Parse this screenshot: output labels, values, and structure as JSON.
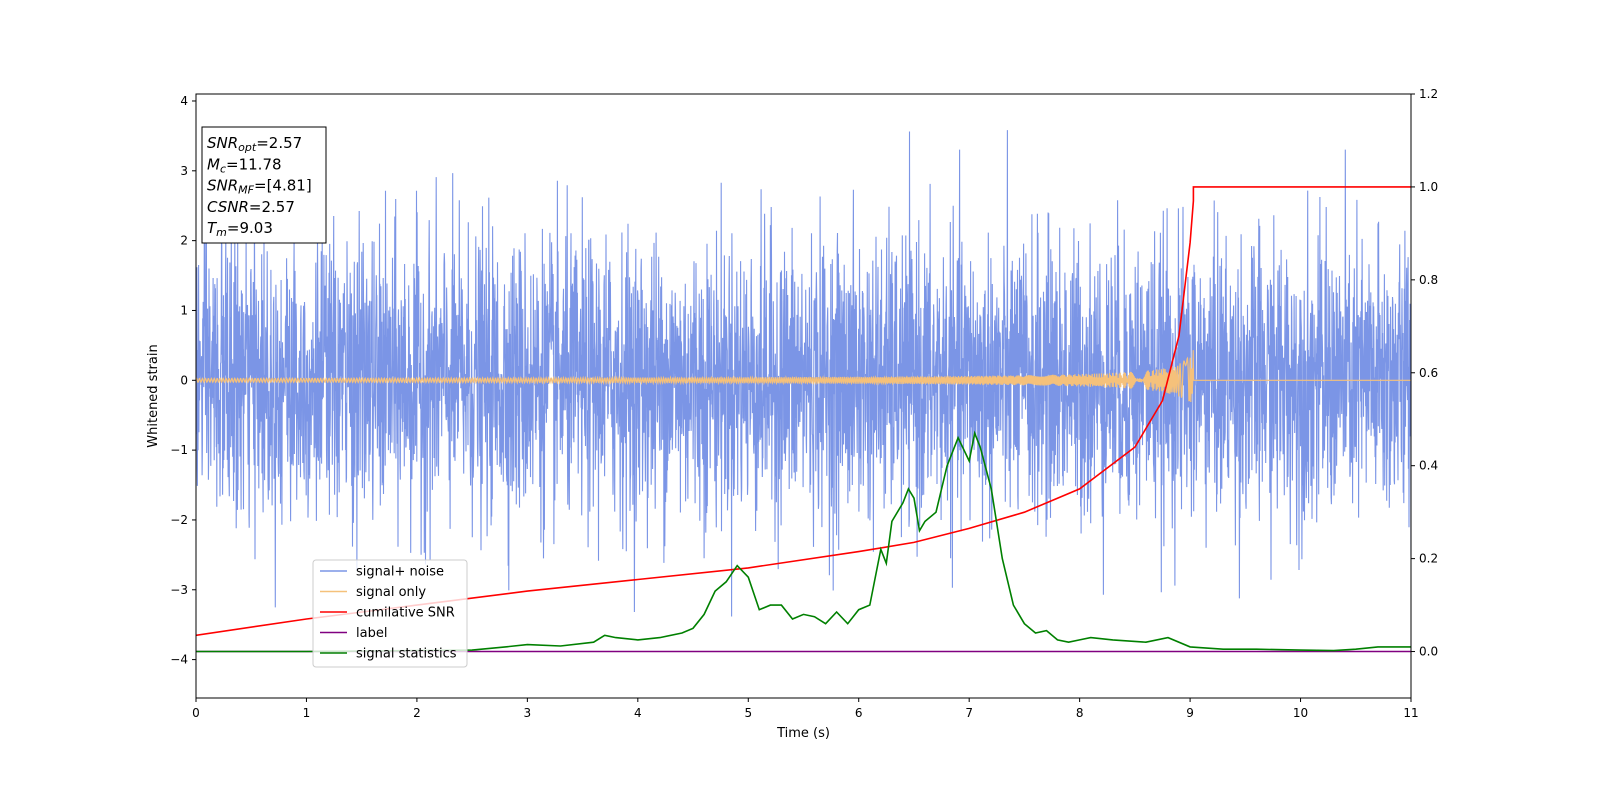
{
  "chart_data": {
    "type": "line",
    "xlabel": "Time (s)",
    "ylabel": "Whitened strain",
    "xlim": [
      0,
      11
    ],
    "ylim": [
      -4.55,
      4.1
    ],
    "y2lim": [
      -0.1,
      1.2
    ],
    "x_ticks": [
      "0",
      "1",
      "2",
      "3",
      "4",
      "5",
      "6",
      "7",
      "8",
      "9",
      "10",
      "11"
    ],
    "y_ticks": [
      "−4",
      "−3",
      "−2",
      "−1",
      "0",
      "1",
      "2",
      "3",
      "4"
    ],
    "y2_ticks": [
      "0.0",
      "0.2",
      "0.4",
      "0.6",
      "0.8",
      "1.0",
      "1.2"
    ],
    "grid": false,
    "legend_position": "lower-left",
    "annotation": {
      "lines": [
        {
          "name": "SNR",
          "sub": "opt",
          "value": "=2.57"
        },
        {
          "name": "M",
          "sub": "c",
          "value": "=11.78"
        },
        {
          "name": "SNR",
          "sub": "MF",
          "value": "=[4.81]"
        },
        {
          "name": "CSNR",
          "sub": "",
          "value": "=2.57"
        },
        {
          "name": "T",
          "sub": "m",
          "value": "=9.03"
        }
      ]
    },
    "series": [
      {
        "name": "signal+ noise",
        "color": "#7b95e6",
        "axis": "left",
        "note": "Gaussian noise with peaks up to about +3.7 / -3.5"
      },
      {
        "name": "signal only",
        "color": "#f5c17b",
        "axis": "left",
        "note": "chirp, amplitude grows to about 0.48 at t=9.03 then zero"
      },
      {
        "name": "cumilative SNR",
        "color": "#ff0000",
        "axis": "right",
        "x": [
          0,
          1,
          2,
          3,
          4,
          5,
          6,
          6.5,
          7,
          7.5,
          8,
          8.5,
          8.75,
          8.9,
          9.0,
          9.03,
          9.03,
          11
        ],
        "y": [
          0.035,
          0.07,
          0.1,
          0.13,
          0.155,
          0.18,
          0.215,
          0.235,
          0.265,
          0.3,
          0.35,
          0.44,
          0.54,
          0.68,
          0.88,
          0.97,
          1.0,
          1.0
        ]
      },
      {
        "name": "label",
        "color": "#800080",
        "axis": "right",
        "x": [
          0,
          11
        ],
        "y": [
          0.0,
          0.0
        ]
      },
      {
        "name": "signal statistics",
        "color": "#008000",
        "axis": "right",
        "x": [
          0,
          1,
          2,
          2.5,
          2.8,
          3,
          3.3,
          3.6,
          3.7,
          3.8,
          4,
          4.2,
          4.4,
          4.5,
          4.6,
          4.7,
          4.8,
          4.9,
          5.0,
          5.1,
          5.2,
          5.3,
          5.4,
          5.5,
          5.6,
          5.7,
          5.8,
          5.9,
          6.0,
          6.1,
          6.2,
          6.25,
          6.3,
          6.4,
          6.45,
          6.5,
          6.55,
          6.6,
          6.7,
          6.8,
          6.9,
          7.0,
          7.05,
          7.1,
          7.2,
          7.3,
          7.4,
          7.5,
          7.6,
          7.7,
          7.8,
          7.9,
          8.0,
          8.1,
          8.3,
          8.6,
          8.8,
          9.0,
          9.3,
          9.6,
          10.0,
          10.3,
          10.5,
          10.7,
          11
        ],
        "y": [
          0.0,
          0.0,
          0.002,
          0.003,
          0.01,
          0.015,
          0.012,
          0.02,
          0.035,
          0.03,
          0.025,
          0.03,
          0.04,
          0.05,
          0.08,
          0.13,
          0.15,
          0.185,
          0.16,
          0.09,
          0.1,
          0.1,
          0.07,
          0.08,
          0.075,
          0.06,
          0.085,
          0.06,
          0.09,
          0.1,
          0.22,
          0.19,
          0.28,
          0.32,
          0.35,
          0.33,
          0.26,
          0.28,
          0.3,
          0.4,
          0.46,
          0.41,
          0.47,
          0.44,
          0.35,
          0.2,
          0.1,
          0.06,
          0.04,
          0.045,
          0.025,
          0.02,
          0.025,
          0.03,
          0.025,
          0.02,
          0.03,
          0.01,
          0.005,
          0.005,
          0.003,
          0.002,
          0.005,
          0.01,
          0.01
        ]
      }
    ]
  }
}
